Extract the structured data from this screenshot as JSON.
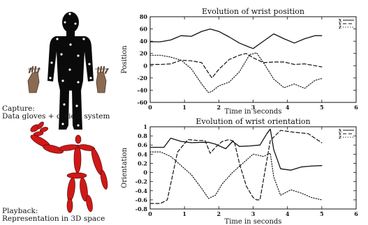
{
  "captions": {
    "capture": [
      "Capture:",
      "Data gloves + optical system"
    ],
    "playback": [
      "Playback:",
      "Representation in 3D space"
    ]
  },
  "chart_data": [
    {
      "type": "line",
      "title": "Evolution of wrist position",
      "xlabel": "Time in seconds",
      "ylabel": "Position",
      "xlim": [
        0,
        6
      ],
      "ylim": [
        -60,
        80
      ],
      "x_ticks": [
        "0",
        "1",
        "2",
        "3",
        "4",
        "5",
        "6"
      ],
      "y_ticks": [
        "80",
        "60",
        "40",
        "20",
        "0",
        "-20",
        "-40",
        "-60"
      ],
      "legend_position": "top-right",
      "series": [
        {
          "name": "X",
          "style": "solid",
          "x": [
            0,
            0.3,
            0.6,
            0.9,
            1.2,
            1.5,
            1.75,
            2.0,
            2.3,
            2.6,
            2.9,
            3.0,
            3.3,
            3.6,
            3.9,
            4.2,
            4.5,
            4.8,
            5.0
          ],
          "y": [
            39,
            39,
            42,
            49,
            48,
            56,
            60,
            56,
            47,
            37,
            30,
            28,
            40,
            52,
            44,
            37,
            44,
            49,
            49
          ]
        },
        {
          "name": "Y",
          "style": "dashed",
          "x": [
            0,
            0.3,
            0.6,
            0.9,
            1.2,
            1.5,
            1.7,
            1.8,
            2.0,
            2.3,
            2.6,
            2.8,
            3.0,
            3.3,
            3.6,
            3.9,
            4.2,
            4.5,
            4.8,
            5.0
          ],
          "y": [
            2,
            2,
            3,
            9,
            8,
            5,
            -12,
            -20,
            -6,
            10,
            17,
            20,
            13,
            5,
            6,
            6,
            2,
            3,
            0,
            -2
          ]
        },
        {
          "name": "Z",
          "style": "dotted",
          "x": [
            0,
            0.3,
            0.6,
            0.9,
            1.2,
            1.5,
            1.7,
            1.8,
            2.0,
            2.3,
            2.6,
            2.9,
            3.1,
            3.3,
            3.6,
            3.9,
            4.2,
            4.5,
            4.8,
            5.0
          ],
          "y": [
            17,
            17,
            14,
            9,
            -5,
            -30,
            -44,
            -42,
            -33,
            -27,
            -10,
            18,
            21,
            5,
            -22,
            -36,
            -30,
            -37,
            -24,
            -21
          ]
        }
      ]
    },
    {
      "type": "line",
      "title": "Evolution of wrist orientation",
      "xlabel": "Time in seconds",
      "ylabel": "Orientation",
      "xlim": [
        0,
        6
      ],
      "ylim": [
        -0.8,
        1.0
      ],
      "x_ticks": [
        "0",
        "1",
        "2",
        "3",
        "4",
        "5",
        "6"
      ],
      "y_ticks": [
        "1",
        "0.8",
        "0.6",
        "0.4",
        "0.2",
        "0",
        "-0.2",
        "-0.4",
        "-0.6",
        "-0.8"
      ],
      "legend_position": "top-right",
      "series": [
        {
          "name": "X",
          "style": "solid",
          "x": [
            0,
            0.4,
            0.6,
            0.9,
            1.2,
            1.5,
            1.7,
            1.9,
            2.2,
            2.4,
            2.6,
            2.9,
            3.2,
            3.4,
            3.5,
            3.6,
            3.8,
            4.1,
            4.4,
            4.7,
            5.0
          ],
          "y": [
            0.55,
            0.55,
            0.75,
            0.68,
            0.65,
            0.66,
            0.66,
            0.62,
            0.52,
            0.68,
            0.57,
            0.58,
            0.6,
            0.85,
            0.95,
            0.5,
            0.08,
            0.05,
            0.12,
            0.14,
            0.15
          ]
        },
        {
          "name": "Y",
          "style": "dashed",
          "x": [
            0,
            0.3,
            0.5,
            0.8,
            1.1,
            1.4,
            1.6,
            1.75,
            1.9,
            2.1,
            2.3,
            2.45,
            2.6,
            2.8,
            3.0,
            3.1,
            3.2,
            3.5,
            3.8,
            4.2,
            4.6,
            5.0
          ],
          "y": [
            -0.68,
            -0.68,
            -0.6,
            0.45,
            0.72,
            0.7,
            0.7,
            0.42,
            0.55,
            0.68,
            0.72,
            0.68,
            0.2,
            -0.3,
            -0.55,
            -0.6,
            -0.6,
            0.7,
            0.92,
            0.88,
            0.85,
            0.65
          ]
        },
        {
          "name": "Z",
          "style": "dotted",
          "x": [
            0,
            0.3,
            0.6,
            0.9,
            1.2,
            1.5,
            1.7,
            1.9,
            2.1,
            2.4,
            2.7,
            3.0,
            3.3,
            3.5,
            3.6,
            3.8,
            4.1,
            4.4,
            4.7,
            5.0
          ],
          "y": [
            0.45,
            0.45,
            0.35,
            0.15,
            -0.05,
            -0.35,
            -0.57,
            -0.5,
            -0.25,
            0.0,
            0.2,
            0.4,
            0.35,
            0.42,
            -0.1,
            -0.5,
            -0.38,
            -0.45,
            -0.55,
            -0.6
          ]
        }
      ]
    }
  ]
}
